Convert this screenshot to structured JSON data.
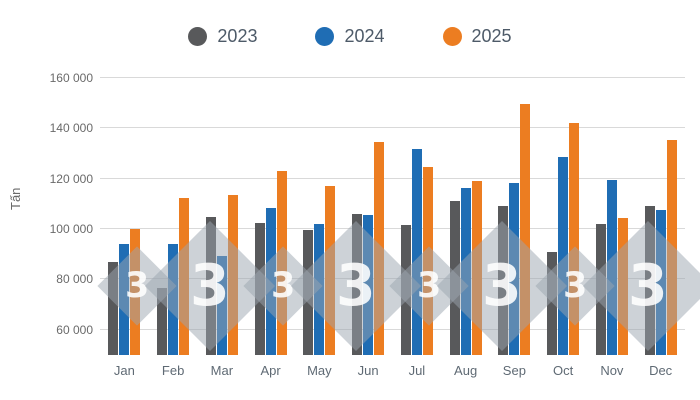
{
  "chart_data": {
    "type": "bar",
    "title": "",
    "ylabel": "Tấn",
    "xlabel": "",
    "ylim": [
      50000,
      160000
    ],
    "yticks": [
      60000,
      80000,
      100000,
      120000,
      140000,
      160000
    ],
    "ytick_labels": [
      "60 000",
      "80 000",
      "100 000",
      "120 000",
      "140 000",
      "160 000"
    ],
    "grid": true,
    "legend_position": "top",
    "categories": [
      "Jan",
      "Feb",
      "Mar",
      "Apr",
      "May",
      "Jun",
      "Jul",
      "Aug",
      "Sep",
      "Oct",
      "Nov",
      "Dec"
    ],
    "series": [
      {
        "name": "2023",
        "color": "#58595b",
        "values": [
          87000,
          76500,
          105000,
          102500,
          99500,
          106000,
          101500,
          111000,
          109000,
          91000,
          102000,
          109000
        ]
      },
      {
        "name": "2024",
        "color": "#1f6db4",
        "values": [
          94000,
          94000,
          89500,
          108500,
          102000,
          105500,
          132000,
          116500,
          118500,
          128500,
          119500,
          107500
        ]
      },
      {
        "name": "2025",
        "color": "#ec7d21",
        "values": [
          100000,
          112500,
          113500,
          123000,
          117000,
          134500,
          124500,
          119000,
          149500,
          142000,
          104500,
          135500
        ]
      }
    ]
  },
  "legend": {
    "items": [
      {
        "label": "2023",
        "color": "#58595b"
      },
      {
        "label": "2024",
        "color": "#1f6db4"
      },
      {
        "label": "2025",
        "color": "#ec7d21"
      }
    ]
  },
  "watermark": {
    "glyph": "3"
  },
  "colors": {
    "gridline": "#d9d9d9",
    "axis_text": "#6a6a6a",
    "legend_text": "#4d5a68"
  }
}
